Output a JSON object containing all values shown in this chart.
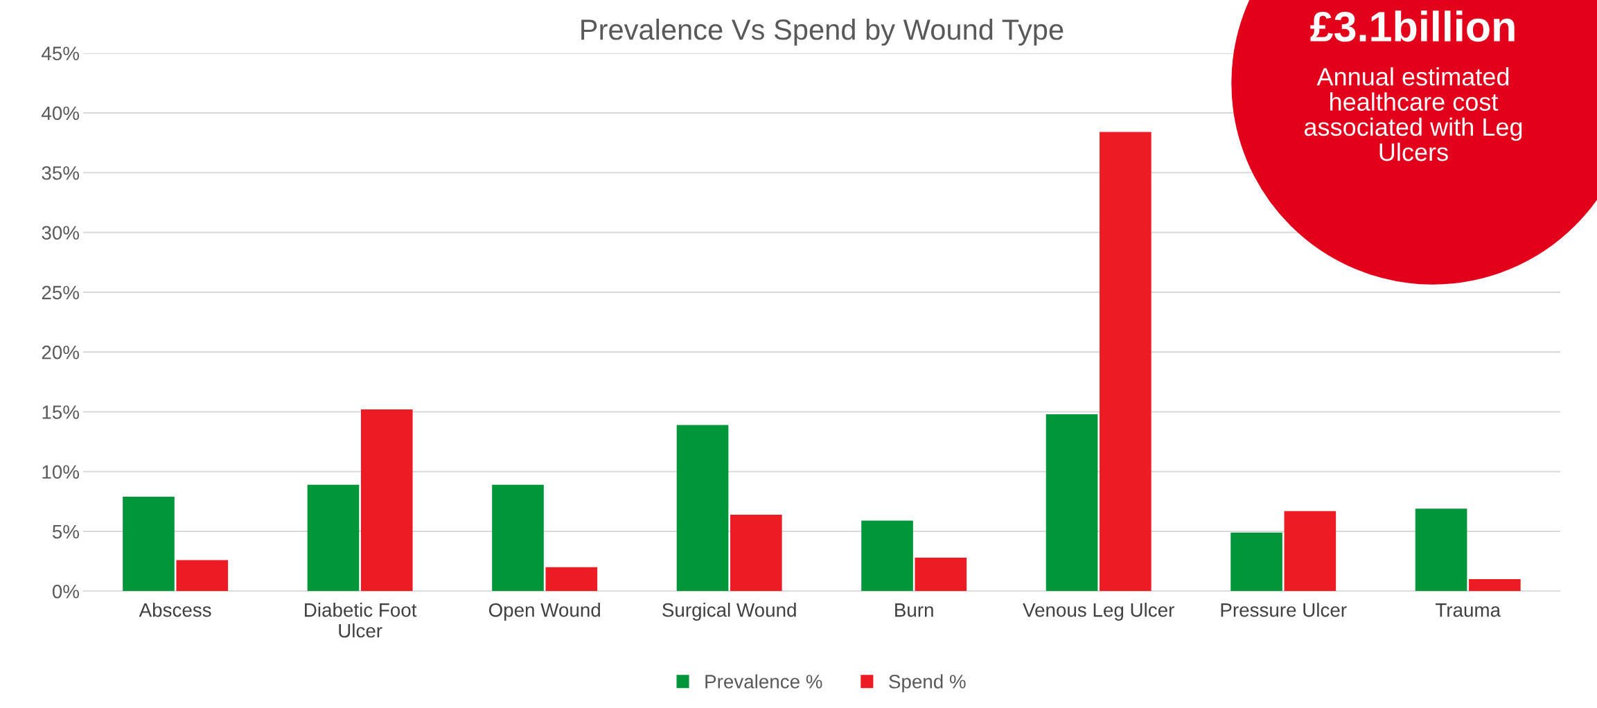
{
  "chart_data": {
    "type": "bar",
    "title": "Prevalence Vs Spend by Wound Type",
    "categories": [
      "Abscess",
      "Diabetic Foot\nUlcer",
      "Open Wound",
      "Surgical Wound",
      "Burn",
      "Venous Leg Ulcer",
      "Pressure Ulcer",
      "Trauma"
    ],
    "series": [
      {
        "name": "Prevalence %",
        "color": "#009639",
        "values": [
          7.9,
          8.9,
          8.9,
          13.9,
          5.9,
          14.8,
          4.9,
          6.9
        ]
      },
      {
        "name": "Spend %",
        "color": "#ed1c24",
        "values": [
          2.6,
          15.2,
          2.0,
          6.4,
          2.8,
          38.4,
          6.7,
          1.0
        ]
      }
    ],
    "ylim": [
      0,
      45
    ],
    "yticks": [
      {
        "value": 0,
        "label": "0%"
      },
      {
        "value": 5,
        "label": "5%"
      },
      {
        "value": 10,
        "label": "10%"
      },
      {
        "value": 15,
        "label": "15%"
      },
      {
        "value": 20,
        "label": "20%"
      },
      {
        "value": 25,
        "label": "25%"
      },
      {
        "value": 30,
        "label": "30%"
      },
      {
        "value": 35,
        "label": "35%"
      },
      {
        "value": 40,
        "label": "40%"
      },
      {
        "value": 45,
        "label": "45%"
      }
    ],
    "grid": "y",
    "legend": "bottom",
    "annotations": [
      "£3.1billion",
      "Annual estimated\nhealthcare cost\nassociated with Leg\nUlcers"
    ]
  }
}
